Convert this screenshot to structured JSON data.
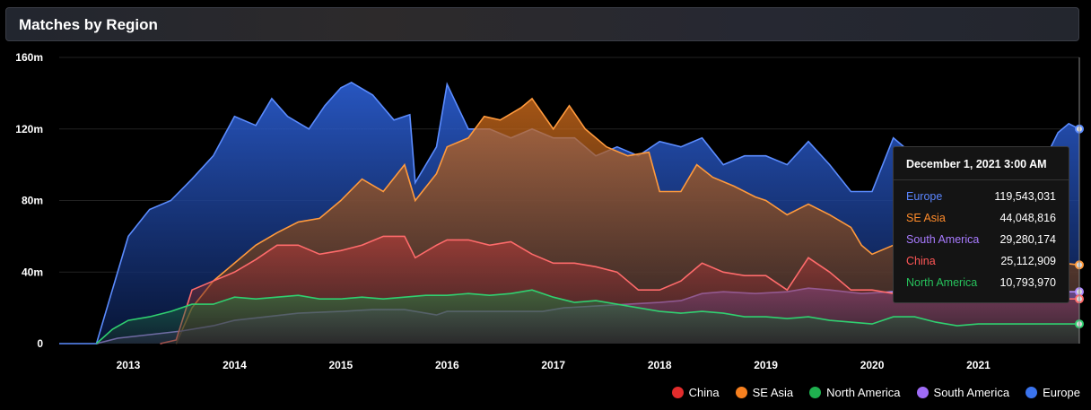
{
  "header": {
    "title": "Matches by Region"
  },
  "tooltip": {
    "date": "December 1, 2021 3:00 AM",
    "rows": [
      {
        "name": "Europe",
        "value": "119,543,031",
        "color": "#5b86ff"
      },
      {
        "name": "SE Asia",
        "value": "44,048,816",
        "color": "#ff8b2a"
      },
      {
        "name": "South America",
        "value": "29,280,174",
        "color": "#a87bff"
      },
      {
        "name": "China",
        "value": "25,112,909",
        "color": "#ff5656"
      },
      {
        "name": "North America",
        "value": "10,793,970",
        "color": "#27c25c"
      }
    ]
  },
  "legend": [
    {
      "name": "China",
      "color": "#e22c2c"
    },
    {
      "name": "SE Asia",
      "color": "#f7801f"
    },
    {
      "name": "North America",
      "color": "#1fb04f"
    },
    {
      "name": "South America",
      "color": "#9f6cf7"
    },
    {
      "name": "Europe",
      "color": "#3b74ee"
    }
  ],
  "chart_data": {
    "type": "area",
    "title": "Matches by Region",
    "x_range": [
      2012.35,
      2021.95
    ],
    "ylim": [
      0,
      160
    ],
    "y_unit": "m",
    "y_ticks": [
      "0",
      "40m",
      "80m",
      "120m",
      "160m"
    ],
    "y_tick_values": [
      0,
      40,
      80,
      120,
      160
    ],
    "x_ticks": [
      "2013",
      "2014",
      "2015",
      "2016",
      "2017",
      "2018",
      "2019",
      "2020",
      "2021"
    ],
    "x_tick_values": [
      2013,
      2014,
      2015,
      2016,
      2017,
      2018,
      2019,
      2020,
      2021
    ],
    "grid": true,
    "legend_position": "bottom-right",
    "series": [
      {
        "name": "Europe",
        "color": "#3b74ee",
        "points": [
          [
            2012.35,
            0
          ],
          [
            2012.7,
            0
          ],
          [
            2012.85,
            30
          ],
          [
            2013.0,
            60
          ],
          [
            2013.2,
            75
          ],
          [
            2013.4,
            80
          ],
          [
            2013.6,
            92
          ],
          [
            2013.8,
            105
          ],
          [
            2014.0,
            127
          ],
          [
            2014.2,
            122
          ],
          [
            2014.35,
            137
          ],
          [
            2014.5,
            127
          ],
          [
            2014.7,
            120
          ],
          [
            2014.85,
            133
          ],
          [
            2015.0,
            143
          ],
          [
            2015.1,
            146
          ],
          [
            2015.3,
            139
          ],
          [
            2015.5,
            125
          ],
          [
            2015.65,
            128
          ],
          [
            2015.7,
            90
          ],
          [
            2015.9,
            110
          ],
          [
            2016.0,
            145
          ],
          [
            2016.2,
            120
          ],
          [
            2016.4,
            120
          ],
          [
            2016.6,
            115
          ],
          [
            2016.8,
            120
          ],
          [
            2017.0,
            115
          ],
          [
            2017.2,
            115
          ],
          [
            2017.4,
            105
          ],
          [
            2017.6,
            110
          ],
          [
            2017.8,
            105
          ],
          [
            2018.0,
            113
          ],
          [
            2018.2,
            110
          ],
          [
            2018.4,
            115
          ],
          [
            2018.6,
            100
          ],
          [
            2018.8,
            105
          ],
          [
            2019.0,
            105
          ],
          [
            2019.2,
            100
          ],
          [
            2019.4,
            113
          ],
          [
            2019.6,
            100
          ],
          [
            2019.8,
            85
          ],
          [
            2020.0,
            85
          ],
          [
            2020.2,
            115
          ],
          [
            2020.4,
            105
          ],
          [
            2020.6,
            100
          ],
          [
            2020.8,
            105
          ],
          [
            2021.0,
            100
          ],
          [
            2021.2,
            100
          ],
          [
            2021.4,
            105
          ],
          [
            2021.6,
            100
          ],
          [
            2021.75,
            118
          ],
          [
            2021.85,
            123
          ],
          [
            2021.95,
            120
          ]
        ]
      },
      {
        "name": "SE Asia",
        "color": "#f7801f",
        "points": [
          [
            2013.45,
            0
          ],
          [
            2013.6,
            20
          ],
          [
            2013.8,
            35
          ],
          [
            2014.0,
            45
          ],
          [
            2014.2,
            55
          ],
          [
            2014.4,
            62
          ],
          [
            2014.6,
            68
          ],
          [
            2014.8,
            70
          ],
          [
            2015.0,
            80
          ],
          [
            2015.2,
            92
          ],
          [
            2015.4,
            85
          ],
          [
            2015.6,
            100
          ],
          [
            2015.7,
            80
          ],
          [
            2015.9,
            95
          ],
          [
            2016.0,
            110
          ],
          [
            2016.2,
            115
          ],
          [
            2016.35,
            127
          ],
          [
            2016.5,
            125
          ],
          [
            2016.7,
            132
          ],
          [
            2016.8,
            137
          ],
          [
            2017.0,
            120
          ],
          [
            2017.15,
            133
          ],
          [
            2017.3,
            120
          ],
          [
            2017.5,
            110
          ],
          [
            2017.7,
            105
          ],
          [
            2017.9,
            107
          ],
          [
            2018.0,
            85
          ],
          [
            2018.2,
            85
          ],
          [
            2018.35,
            100
          ],
          [
            2018.5,
            93
          ],
          [
            2018.7,
            88
          ],
          [
            2018.9,
            82
          ],
          [
            2019.0,
            80
          ],
          [
            2019.2,
            72
          ],
          [
            2019.4,
            78
          ],
          [
            2019.6,
            72
          ],
          [
            2019.8,
            65
          ],
          [
            2019.9,
            55
          ],
          [
            2020.0,
            50
          ],
          [
            2020.2,
            55
          ],
          [
            2020.4,
            60
          ],
          [
            2020.6,
            55
          ],
          [
            2020.8,
            52
          ],
          [
            2021.0,
            50
          ],
          [
            2021.2,
            50
          ],
          [
            2021.4,
            48
          ],
          [
            2021.6,
            47
          ],
          [
            2021.8,
            45
          ],
          [
            2021.95,
            44
          ]
        ]
      },
      {
        "name": "South America",
        "color": "#9f6cf7",
        "points": [
          [
            2012.7,
            0
          ],
          [
            2012.9,
            3
          ],
          [
            2013.2,
            5
          ],
          [
            2013.5,
            7
          ],
          [
            2013.8,
            10
          ],
          [
            2014.0,
            13
          ],
          [
            2014.3,
            15
          ],
          [
            2014.6,
            17
          ],
          [
            2015.0,
            18
          ],
          [
            2015.3,
            19
          ],
          [
            2015.6,
            19
          ],
          [
            2015.9,
            16
          ],
          [
            2016.0,
            18
          ],
          [
            2016.3,
            18
          ],
          [
            2016.6,
            18
          ],
          [
            2016.9,
            18
          ],
          [
            2017.1,
            20
          ],
          [
            2017.4,
            21
          ],
          [
            2017.7,
            22
          ],
          [
            2018.0,
            23
          ],
          [
            2018.2,
            24
          ],
          [
            2018.4,
            28
          ],
          [
            2018.6,
            29
          ],
          [
            2018.9,
            28
          ],
          [
            2019.2,
            29
          ],
          [
            2019.4,
            31
          ],
          [
            2019.6,
            30
          ],
          [
            2019.9,
            28
          ],
          [
            2020.2,
            29
          ],
          [
            2020.5,
            29
          ],
          [
            2020.8,
            29
          ],
          [
            2021.1,
            29
          ],
          [
            2021.5,
            29
          ],
          [
            2021.95,
            29
          ]
        ]
      },
      {
        "name": "China",
        "color": "#e22c2c",
        "points": [
          [
            2013.3,
            0
          ],
          [
            2013.45,
            2
          ],
          [
            2013.6,
            30
          ],
          [
            2013.8,
            35
          ],
          [
            2014.0,
            40
          ],
          [
            2014.2,
            47
          ],
          [
            2014.4,
            55
          ],
          [
            2014.6,
            55
          ],
          [
            2014.8,
            50
          ],
          [
            2015.0,
            52
          ],
          [
            2015.2,
            55
          ],
          [
            2015.4,
            60
          ],
          [
            2015.6,
            60
          ],
          [
            2015.7,
            48
          ],
          [
            2015.9,
            55
          ],
          [
            2016.0,
            58
          ],
          [
            2016.2,
            58
          ],
          [
            2016.4,
            55
          ],
          [
            2016.6,
            57
          ],
          [
            2016.8,
            50
          ],
          [
            2017.0,
            45
          ],
          [
            2017.2,
            45
          ],
          [
            2017.4,
            43
          ],
          [
            2017.6,
            40
          ],
          [
            2017.8,
            30
          ],
          [
            2018.0,
            30
          ],
          [
            2018.2,
            35
          ],
          [
            2018.4,
            45
          ],
          [
            2018.6,
            40
          ],
          [
            2018.8,
            38
          ],
          [
            2019.0,
            38
          ],
          [
            2019.2,
            30
          ],
          [
            2019.4,
            48
          ],
          [
            2019.6,
            40
          ],
          [
            2019.8,
            30
          ],
          [
            2020.0,
            30
          ],
          [
            2020.2,
            28
          ],
          [
            2020.4,
            25
          ],
          [
            2020.6,
            25
          ],
          [
            2020.8,
            25
          ],
          [
            2021.0,
            25
          ],
          [
            2021.3,
            25
          ],
          [
            2021.6,
            25
          ],
          [
            2021.95,
            25
          ]
        ]
      },
      {
        "name": "North America",
        "color": "#1fb04f",
        "points": [
          [
            2012.7,
            0
          ],
          [
            2012.85,
            8
          ],
          [
            2013.0,
            13
          ],
          [
            2013.2,
            15
          ],
          [
            2013.4,
            18
          ],
          [
            2013.6,
            22
          ],
          [
            2013.8,
            22
          ],
          [
            2014.0,
            26
          ],
          [
            2014.2,
            25
          ],
          [
            2014.4,
            26
          ],
          [
            2014.6,
            27
          ],
          [
            2014.8,
            25
          ],
          [
            2015.0,
            25
          ],
          [
            2015.2,
            26
          ],
          [
            2015.4,
            25
          ],
          [
            2015.6,
            26
          ],
          [
            2015.8,
            27
          ],
          [
            2016.0,
            27
          ],
          [
            2016.2,
            28
          ],
          [
            2016.4,
            27
          ],
          [
            2016.6,
            28
          ],
          [
            2016.8,
            30
          ],
          [
            2017.0,
            26
          ],
          [
            2017.2,
            23
          ],
          [
            2017.4,
            24
          ],
          [
            2017.6,
            22
          ],
          [
            2017.8,
            20
          ],
          [
            2018.0,
            18
          ],
          [
            2018.2,
            17
          ],
          [
            2018.4,
            18
          ],
          [
            2018.6,
            17
          ],
          [
            2018.8,
            15
          ],
          [
            2019.0,
            15
          ],
          [
            2019.2,
            14
          ],
          [
            2019.4,
            15
          ],
          [
            2019.6,
            13
          ],
          [
            2019.8,
            12
          ],
          [
            2020.0,
            11
          ],
          [
            2020.2,
            15
          ],
          [
            2020.4,
            15
          ],
          [
            2020.6,
            12
          ],
          [
            2020.8,
            10
          ],
          [
            2021.0,
            11
          ],
          [
            2021.2,
            11
          ],
          [
            2021.4,
            11
          ],
          [
            2021.6,
            11
          ],
          [
            2021.8,
            11
          ],
          [
            2021.95,
            11
          ]
        ]
      }
    ]
  }
}
